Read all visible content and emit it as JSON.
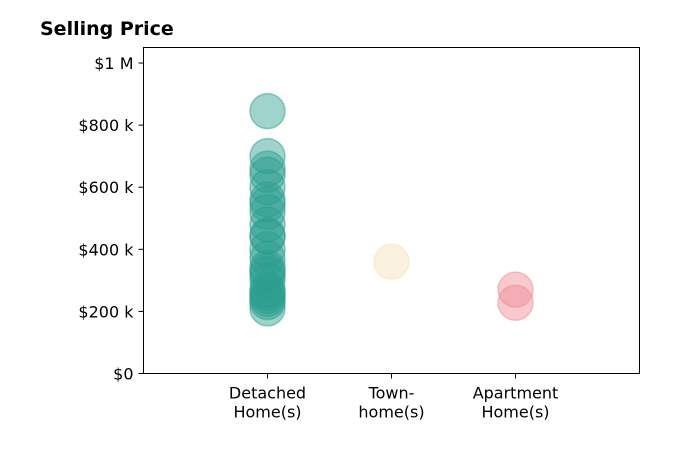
{
  "chart_data": {
    "type": "scatter",
    "title": "Selling Price",
    "xlabel": "",
    "ylabel": "",
    "categories": [
      [
        "Detached",
        "Home(s)"
      ],
      [
        "Town-",
        "home(s)"
      ],
      [
        "Apartment",
        "Home(s)"
      ]
    ],
    "y_ticks": [
      0,
      200000,
      400000,
      600000,
      800000,
      1000000
    ],
    "y_tick_labels": [
      "$0",
      "$200 k",
      "$400 k",
      "$600 k",
      "$800 k",
      "$1 M"
    ],
    "ylim": [
      0,
      1050000
    ],
    "xlim": [
      -1,
      3
    ],
    "grid": false,
    "series": [
      {
        "category_index": 0,
        "color": "#2a9d8f",
        "values": [
          845000,
          700000,
          660000,
          640000,
          600000,
          560000,
          545000,
          520000,
          480000,
          445000,
          440000,
          400000,
          370000,
          340000,
          330000,
          320000,
          300000,
          270000,
          260000,
          250000,
          240000,
          230000,
          210000
        ]
      },
      {
        "category_index": 1,
        "color": "#f4e1b5",
        "values": [
          360000
        ]
      },
      {
        "category_index": 2,
        "color": "#ef8a95",
        "values": [
          270000,
          228000
        ]
      }
    ]
  }
}
